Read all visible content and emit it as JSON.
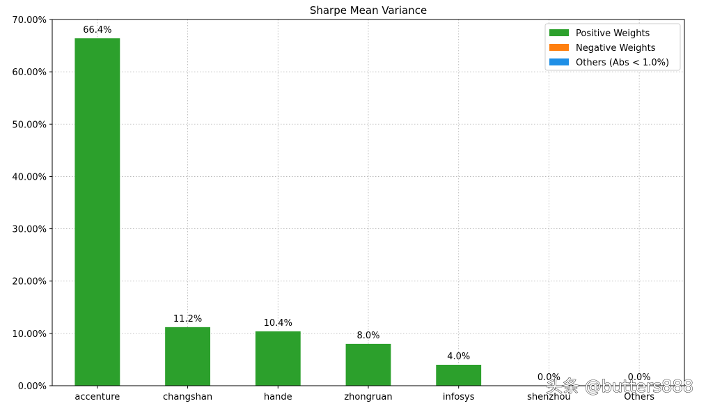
{
  "chart_data": {
    "type": "bar",
    "title": "Sharpe Mean Variance",
    "xlabel": "",
    "ylabel": "",
    "categories": [
      "accenture",
      "changshan",
      "hande",
      "zhongruan",
      "infosys",
      "shenzhou",
      "Others"
    ],
    "values": [
      66.4,
      11.2,
      10.4,
      8.0,
      4.0,
      0.0,
      0.0
    ],
    "value_labels": [
      "66.4%",
      "11.2%",
      "10.4%",
      "8.0%",
      "4.0%",
      "0.0%",
      "0.0%"
    ],
    "ylim": [
      0,
      70
    ],
    "yticks": [
      0,
      10,
      20,
      30,
      40,
      50,
      60,
      70
    ],
    "ytick_labels": [
      "0.00%",
      "10.00%",
      "20.00%",
      "30.00%",
      "40.00%",
      "50.00%",
      "60.00%",
      "70.00%"
    ],
    "grid": true,
    "legend_position": "top-right",
    "legend": [
      {
        "label": "Positive Weights",
        "color": "#2ca02c"
      },
      {
        "label": "Negative Weights",
        "color": "#ff7f0e"
      },
      {
        "label": "Others (Abs < 1.0%)",
        "color": "#1f8fe6"
      }
    ],
    "bar_color": "#2ca02c"
  },
  "watermark": "头条 @butters888"
}
